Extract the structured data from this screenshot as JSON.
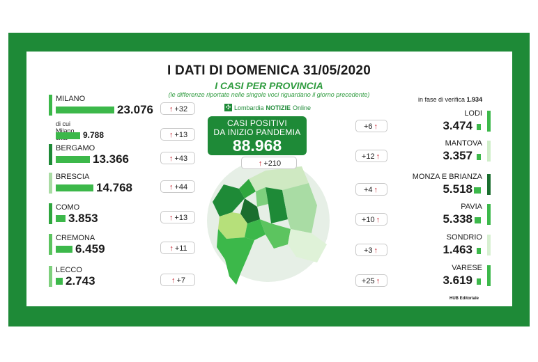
{
  "title": "I DATI DI DOMENICA 31/05/2020",
  "subtitle": "I CASI PER PROVINCIA",
  "note": "(le differenze riportate nelle singole voci riguardano il giorno precedente)",
  "brand": {
    "name": "Lombardia",
    "name_bold": "NOTIZIE",
    "suffix": "Online"
  },
  "total": {
    "label_line1": "CASI POSITIVI",
    "label_line2": "DA INIZIO PANDEMIA",
    "value": "88.968",
    "diff": "+210"
  },
  "verify": {
    "label": "in fase di verifica",
    "value": "1.934"
  },
  "credit": "HUB Editoriale",
  "colors": {
    "frame": "#1e8a37",
    "accent": "#3cb84a",
    "arrow": "#c1121f"
  },
  "left_provinces": [
    {
      "name": "MILANO",
      "value": "23.076",
      "diff": "+32",
      "fill": 1.0,
      "shade": "#3cb84a"
    },
    {
      "name": "di cui Milano città",
      "value": "9.788",
      "diff": "+13",
      "fill": 0.42,
      "shade": "#3cb84a"
    },
    {
      "name": "BERGAMO",
      "value": "13.366",
      "diff": "+43",
      "fill": 0.58,
      "shade": "#1e8a37"
    },
    {
      "name": "BRESCIA",
      "value": "14.768",
      "diff": "+44",
      "fill": 0.64,
      "shade": "#a9dca4"
    },
    {
      "name": "COMO",
      "value": "3.853",
      "diff": "+13",
      "fill": 0.17,
      "shade": "#2fa63e"
    },
    {
      "name": "CREMONA",
      "value": "6.459",
      "diff": "+11",
      "fill": 0.28,
      "shade": "#5cc45f"
    },
    {
      "name": "LECCO",
      "value": "2.743",
      "diff": "+7",
      "fill": 0.12,
      "shade": "#7ed07d"
    }
  ],
  "right_provinces": [
    {
      "name": "LODI",
      "value": "3.474",
      "diff": "+6",
      "fill": 0.15,
      "shade": "#3cb84a"
    },
    {
      "name": "MANTOVA",
      "value": "3.357",
      "diff": "+12",
      "fill": 0.15,
      "shade": "#cfeec9"
    },
    {
      "name": "MONZA E BRIANZA",
      "value": "5.518",
      "diff": "+4",
      "fill": 0.24,
      "shade": "#1a6e2e"
    },
    {
      "name": "PAVIA",
      "value": "5.338",
      "diff": "+10",
      "fill": 0.23,
      "shade": "#3cb84a"
    },
    {
      "name": "SONDRIO",
      "value": "1.463",
      "diff": "+3",
      "fill": 0.06,
      "shade": "#d7f0d1"
    },
    {
      "name": "VARESE",
      "value": "3.619",
      "diff": "+25",
      "fill": 0.16,
      "shade": "#3cb84a"
    }
  ]
}
